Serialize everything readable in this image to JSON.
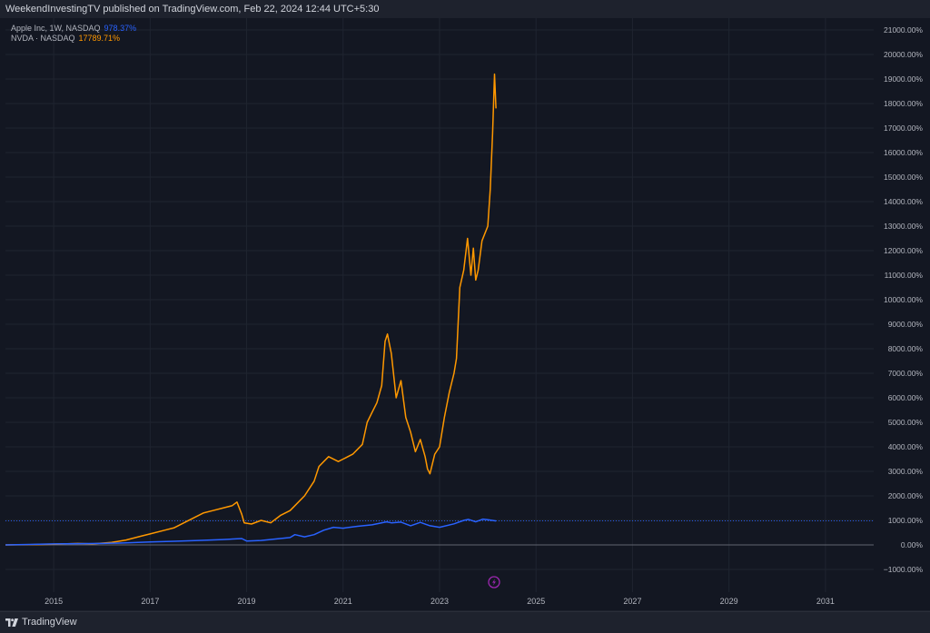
{
  "header": {
    "published_text": "WeekendInvestingTV published on TradingView.com, Feb 22, 2024 12:44 UTC+5:30"
  },
  "legend": {
    "items": [
      {
        "name": "Apple Inc, 1W, NASDAQ",
        "value": "978.37%",
        "color": "#2962ff"
      },
      {
        "name": "NVDA · NASDAQ",
        "value": "17789.71%",
        "color": "#ff9800"
      }
    ]
  },
  "footer": {
    "brand": "TradingView"
  },
  "icons": {
    "header_brand": "tradingview-logo-icon",
    "flash": "lightning-icon"
  },
  "chart_data": {
    "type": "line",
    "title": "",
    "xlabel": "",
    "ylabel": "",
    "y_unit": "%",
    "xlim": [
      2014.0,
      2032.0
    ],
    "ylim": [
      -1000,
      21000
    ],
    "x_ticks": [
      2015,
      2017,
      2019,
      2021,
      2023,
      2025,
      2027,
      2029,
      2031
    ],
    "x_tick_labels": [
      "2015",
      "2017",
      "2019",
      "2021",
      "2023",
      "2025",
      "2027",
      "2029",
      "2031"
    ],
    "y_ticks": [
      -1000,
      0,
      1000,
      2000,
      3000,
      4000,
      5000,
      6000,
      7000,
      8000,
      9000,
      10000,
      11000,
      12000,
      13000,
      14000,
      15000,
      16000,
      17000,
      18000,
      19000,
      20000,
      21000
    ],
    "y_tick_labels": [
      "−1000.00%",
      "0.00%",
      "1000.00%",
      "2000.00%",
      "3000.00%",
      "4000.00%",
      "5000.00%",
      "6000.00%",
      "7000.00%",
      "8000.00%",
      "9000.00%",
      "10000.00%",
      "11000.00%",
      "12000.00%",
      "13000.00%",
      "14000.00%",
      "15000.00%",
      "16000.00%",
      "17000.00%",
      "18000.00%",
      "19000.00%",
      "20000.00%",
      "21000.00%"
    ],
    "grid": true,
    "legend_position": "top-left",
    "baseline": 0,
    "reference_line": {
      "value": 978.37,
      "color": "#2962ff"
    },
    "series": [
      {
        "name": "NVDA · NASDAQ",
        "color": "#ff9800",
        "points": [
          [
            2014.0,
            0
          ],
          [
            2014.5,
            10
          ],
          [
            2015.0,
            30
          ],
          [
            2015.5,
            60
          ],
          [
            2015.8,
            40
          ],
          [
            2016.2,
            100
          ],
          [
            2016.5,
            200
          ],
          [
            2016.8,
            350
          ],
          [
            2017.0,
            450
          ],
          [
            2017.3,
            600
          ],
          [
            2017.5,
            700
          ],
          [
            2017.7,
            900
          ],
          [
            2017.9,
            1100
          ],
          [
            2018.1,
            1300
          ],
          [
            2018.3,
            1400
          ],
          [
            2018.5,
            1500
          ],
          [
            2018.7,
            1600
          ],
          [
            2018.8,
            1750
          ],
          [
            2018.9,
            1250
          ],
          [
            2018.95,
            900
          ],
          [
            2019.1,
            850
          ],
          [
            2019.3,
            1000
          ],
          [
            2019.5,
            900
          ],
          [
            2019.7,
            1200
          ],
          [
            2019.9,
            1400
          ],
          [
            2020.0,
            1600
          ],
          [
            2020.2,
            2000
          ],
          [
            2020.4,
            2600
          ],
          [
            2020.5,
            3200
          ],
          [
            2020.7,
            3600
          ],
          [
            2020.9,
            3400
          ],
          [
            2021.0,
            3500
          ],
          [
            2021.2,
            3700
          ],
          [
            2021.4,
            4100
          ],
          [
            2021.5,
            5000
          ],
          [
            2021.6,
            5400
          ],
          [
            2021.7,
            5800
          ],
          [
            2021.8,
            6500
          ],
          [
            2021.87,
            8300
          ],
          [
            2021.92,
            8600
          ],
          [
            2022.0,
            7800
          ],
          [
            2022.1,
            6000
          ],
          [
            2022.2,
            6700
          ],
          [
            2022.3,
            5200
          ],
          [
            2022.4,
            4600
          ],
          [
            2022.5,
            3800
          ],
          [
            2022.6,
            4300
          ],
          [
            2022.7,
            3600
          ],
          [
            2022.75,
            3100
          ],
          [
            2022.8,
            2900
          ],
          [
            2022.9,
            3700
          ],
          [
            2023.0,
            4000
          ],
          [
            2023.1,
            5200
          ],
          [
            2023.2,
            6200
          ],
          [
            2023.3,
            7000
          ],
          [
            2023.35,
            7600
          ],
          [
            2023.42,
            10500
          ],
          [
            2023.5,
            11200
          ],
          [
            2023.58,
            12500
          ],
          [
            2023.65,
            11000
          ],
          [
            2023.7,
            12100
          ],
          [
            2023.75,
            10800
          ],
          [
            2023.8,
            11200
          ],
          [
            2023.88,
            12400
          ],
          [
            2024.0,
            13000
          ],
          [
            2024.05,
            14500
          ],
          [
            2024.1,
            16800
          ],
          [
            2024.14,
            19200
          ],
          [
            2024.17,
            17800
          ]
        ]
      },
      {
        "name": "Apple Inc, 1W, NASDAQ",
        "color": "#2962ff",
        "points": [
          [
            2014.0,
            0
          ],
          [
            2014.5,
            20
          ],
          [
            2015.0,
            40
          ],
          [
            2015.5,
            50
          ],
          [
            2016.0,
            60
          ],
          [
            2016.5,
            80
          ],
          [
            2017.0,
            120
          ],
          [
            2017.5,
            150
          ],
          [
            2018.0,
            180
          ],
          [
            2018.5,
            220
          ],
          [
            2018.9,
            260
          ],
          [
            2019.0,
            160
          ],
          [
            2019.3,
            180
          ],
          [
            2019.6,
            240
          ],
          [
            2019.9,
            300
          ],
          [
            2020.0,
            420
          ],
          [
            2020.2,
            330
          ],
          [
            2020.4,
            420
          ],
          [
            2020.6,
            600
          ],
          [
            2020.8,
            720
          ],
          [
            2021.0,
            680
          ],
          [
            2021.3,
            760
          ],
          [
            2021.6,
            820
          ],
          [
            2021.9,
            940
          ],
          [
            2022.0,
            900
          ],
          [
            2022.2,
            930
          ],
          [
            2022.4,
            780
          ],
          [
            2022.6,
            920
          ],
          [
            2022.8,
            780
          ],
          [
            2023.0,
            720
          ],
          [
            2023.3,
            860
          ],
          [
            2023.5,
            1000
          ],
          [
            2023.6,
            1040
          ],
          [
            2023.75,
            940
          ],
          [
            2023.9,
            1050
          ],
          [
            2024.0,
            1030
          ],
          [
            2024.17,
            978
          ]
        ]
      }
    ]
  }
}
